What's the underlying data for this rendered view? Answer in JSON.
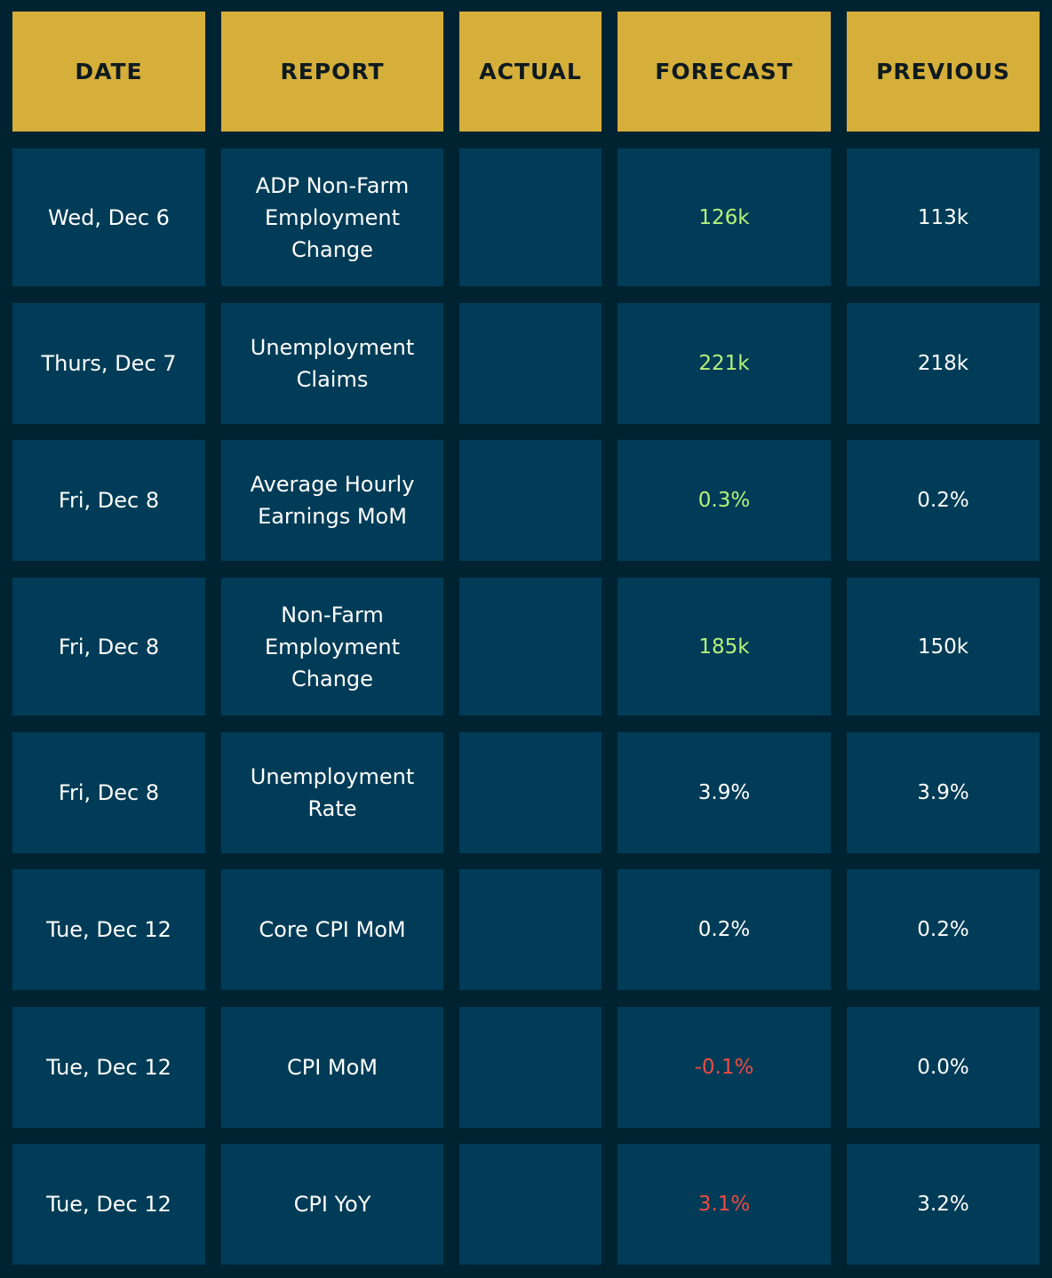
{
  "columns": [
    "DATE",
    "REPORT",
    "ACTUAL",
    "FORECAST",
    "PREVIOUS"
  ],
  "colors": {
    "background": "#002332",
    "header_bg": "#d5af3a",
    "header_text": "#0e1a1f",
    "cell_bg": "#003c57",
    "text": "#ffffff",
    "positive": "#b6f27a",
    "negative": "#f04a43"
  },
  "rows": [
    {
      "date": "Wed, Dec 6",
      "report": "ADP Non-Farm Employment Change",
      "actual": "",
      "forecast": "126k",
      "forecast_tone": "positive",
      "previous": "113k"
    },
    {
      "date": "Thurs, Dec 7",
      "report": "Unemployment Claims",
      "actual": "",
      "forecast": "221k",
      "forecast_tone": "positive",
      "previous": "218k"
    },
    {
      "date": "Fri, Dec 8",
      "report": "Average Hourly Earnings MoM",
      "actual": "",
      "forecast": "0.3%",
      "forecast_tone": "positive",
      "previous": "0.2%"
    },
    {
      "date": "Fri, Dec 8",
      "report": "Non-Farm Employment Change",
      "actual": "",
      "forecast": "185k",
      "forecast_tone": "positive",
      "previous": "150k"
    },
    {
      "date": "Fri, Dec 8",
      "report": "Unemployment Rate",
      "actual": "",
      "forecast": "3.9%",
      "forecast_tone": "neutral",
      "previous": "3.9%"
    },
    {
      "date": "Tue, Dec 12",
      "report": "Core CPI MoM",
      "actual": "",
      "forecast": "0.2%",
      "forecast_tone": "neutral",
      "previous": "0.2%"
    },
    {
      "date": "Tue, Dec 12",
      "report": "CPI MoM",
      "actual": "",
      "forecast": "-0.1%",
      "forecast_tone": "negative",
      "previous": "0.0%"
    },
    {
      "date": "Tue, Dec 12",
      "report": "CPI YoY",
      "actual": "",
      "forecast": "3.1%",
      "forecast_tone": "negative",
      "previous": "3.2%"
    }
  ]
}
